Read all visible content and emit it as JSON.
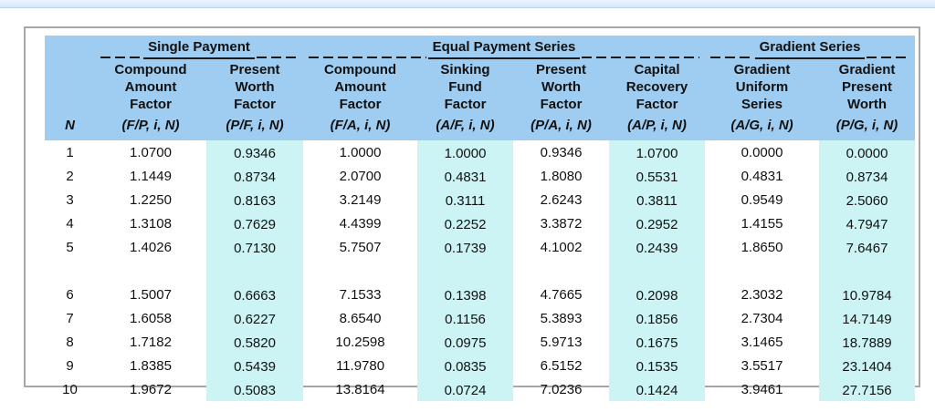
{
  "table": {
    "groups": [
      {
        "label": "Single Payment"
      },
      {
        "label": "Equal Payment Series"
      },
      {
        "label": "Gradient Series"
      }
    ],
    "columns": [
      {
        "label": "",
        "notation": "N",
        "highlight": false
      },
      {
        "label": "Compound Amount Factor",
        "notation": "(F/P, i, N)",
        "highlight": false
      },
      {
        "label": "Present Worth Factor",
        "notation": "(P/F, i, N)",
        "highlight": true
      },
      {
        "label": "Compound Amount Factor",
        "notation": "(F/A, i, N)",
        "highlight": false
      },
      {
        "label": "Sinking Fund Factor",
        "notation": "(A/F, i, N)",
        "highlight": true
      },
      {
        "label": "Present Worth Factor",
        "notation": "(P/A, i, N)",
        "highlight": false
      },
      {
        "label": "Capital Recovery Factor",
        "notation": "(A/P, i, N)",
        "highlight": true
      },
      {
        "label": "Gradient Uniform Series",
        "notation": "(A/G, i, N)",
        "highlight": false
      },
      {
        "label": "Gradient Present Worth",
        "notation": "(P/G, i, N)",
        "highlight": true
      }
    ],
    "row_blocks": [
      [
        {
          "n": "1",
          "values": [
            "1.0700",
            "0.9346",
            "1.0000",
            "1.0000",
            "0.9346",
            "1.0700",
            "0.0000",
            "0.0000"
          ]
        },
        {
          "n": "2",
          "values": [
            "1.1449",
            "0.8734",
            "2.0700",
            "0.4831",
            "1.8080",
            "0.5531",
            "0.4831",
            "0.8734"
          ]
        },
        {
          "n": "3",
          "values": [
            "1.2250",
            "0.8163",
            "3.2149",
            "0.3111",
            "2.6243",
            "0.3811",
            "0.9549",
            "2.5060"
          ]
        },
        {
          "n": "4",
          "values": [
            "1.3108",
            "0.7629",
            "4.4399",
            "0.2252",
            "3.3872",
            "0.2952",
            "1.4155",
            "4.7947"
          ]
        },
        {
          "n": "5",
          "values": [
            "1.4026",
            "0.7130",
            "5.7507",
            "0.1739",
            "4.1002",
            "0.2439",
            "1.8650",
            "7.6467"
          ]
        }
      ],
      [
        {
          "n": "6",
          "values": [
            "1.5007",
            "0.6663",
            "7.1533",
            "0.1398",
            "4.7665",
            "0.2098",
            "2.3032",
            "10.9784"
          ]
        },
        {
          "n": "7",
          "values": [
            "1.6058",
            "0.6227",
            "8.6540",
            "0.1156",
            "5.3893",
            "0.1856",
            "2.7304",
            "14.7149"
          ]
        },
        {
          "n": "8",
          "values": [
            "1.7182",
            "0.5820",
            "10.2598",
            "0.0975",
            "5.9713",
            "0.1675",
            "3.1465",
            "18.7889"
          ]
        },
        {
          "n": "9",
          "values": [
            "1.8385",
            "0.5439",
            "11.9780",
            "0.0835",
            "6.5152",
            "0.1535",
            "3.5517",
            "23.1404"
          ]
        },
        {
          "n": "10",
          "values": [
            "1.9672",
            "0.5083",
            "13.8164",
            "0.0724",
            "7.0236",
            "0.1424",
            "3.9461",
            "27.7156"
          ]
        }
      ]
    ],
    "colors": {
      "header_bg": "#9fcdf2",
      "highlight_bg": "#ccf4f5",
      "top_strip": "#d3e7f8",
      "panel_border": "#a6a6a6"
    }
  }
}
